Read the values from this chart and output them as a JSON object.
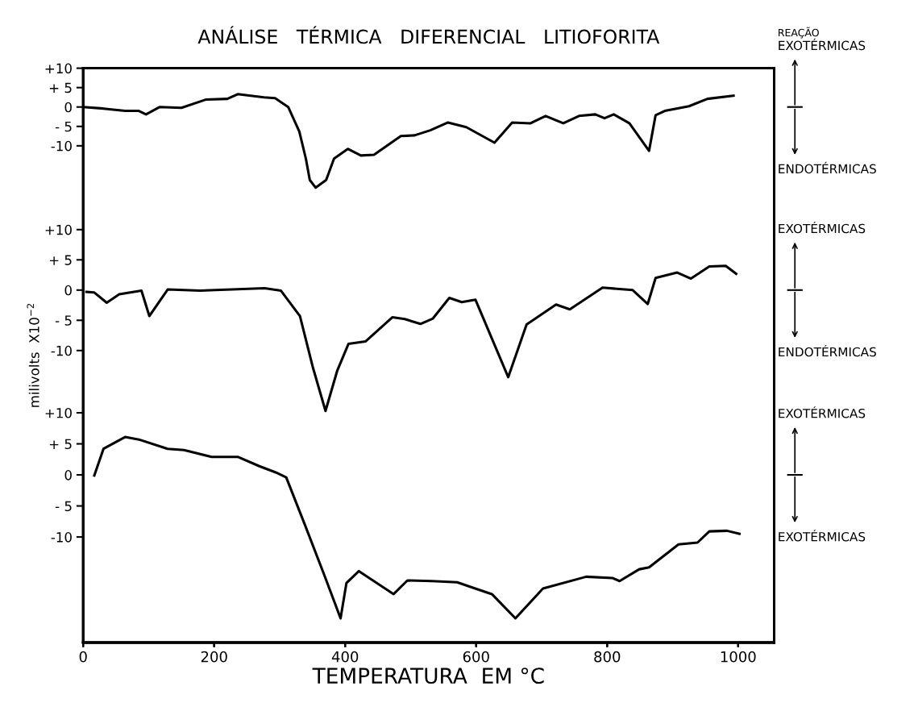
{
  "chart_data": [
    {
      "type": "line",
      "title": "ANÁLISE   TÉRMICA   DIFERENCIAL   LITIOFORITA",
      "annotations": [
        "REAÇÃO",
        "EXOTÉRMICAS",
        "ENDOTÉRMICAS"
      ],
      "tick_labels": "y",
      "xlim": [
        0,
        1055
      ],
      "xticks": [
        0,
        200,
        400,
        600,
        800,
        1000
      ],
      "ylim": [
        -138,
        10
      ],
      "yticks": [
        {
          "value": 10,
          "label": "+10"
        },
        {
          "value": 5,
          "label": "+ 5"
        },
        0,
        {
          "value": -5,
          "label": "- 5"
        },
        {
          "value": -10,
          "label": "-10"
        }
      ],
      "x": [
        0,
        31,
        64,
        85,
        96,
        117,
        150,
        187,
        220,
        236,
        276,
        293,
        313,
        330,
        340,
        346,
        355,
        371,
        383,
        404,
        424,
        444,
        485,
        506,
        530,
        557,
        585,
        628,
        655,
        683,
        706,
        733,
        757,
        782,
        796,
        810,
        834,
        864,
        874,
        888,
        925,
        953,
        993
      ],
      "series": [
        {
          "color": "#000000",
          "values": [
            0,
            -0.4,
            -1,
            -1,
            -1.9,
            0,
            -0.2,
            1.9,
            2.1,
            3.3,
            2.5,
            2.3,
            0,
            -6.3,
            -13.3,
            -18.8,
            -20.8,
            -18.8,
            -13.3,
            -10.8,
            -12.5,
            -12.3,
            -7.5,
            -7.3,
            -6,
            -4,
            -5.2,
            -9.2,
            -4,
            -4.2,
            -2.3,
            -4.2,
            -2.3,
            -1.9,
            -2.9,
            -1.9,
            -4.2,
            -11.3,
            -2.1,
            -1,
            0.2,
            2.1,
            2.9
          ]
        }
      ]
    },
    {
      "type": "line",
      "ylabel": "milivolts  X10$^{−2}$",
      "annotations": [
        "EXOTÉRMICAS",
        "ENDOTÉRMICAS"
      ],
      "tick_labels": "y",
      "xlim": [
        0,
        1055
      ],
      "xticks": [
        0,
        200,
        400,
        600,
        800,
        1000
      ],
      "ylim": [
        -58.3,
        36.7
      ],
      "yticks": [
        {
          "value": 10,
          "label": "+10"
        },
        {
          "value": 5,
          "label": "+ 5"
        },
        0,
        {
          "value": -5,
          "label": "- 5"
        },
        {
          "value": -10,
          "label": "-10"
        }
      ],
      "x": [
        5,
        17,
        36,
        55,
        89,
        101,
        129,
        178,
        277,
        302,
        331,
        351,
        370,
        388,
        405,
        431,
        472,
        491,
        515,
        534,
        559,
        578,
        599,
        649,
        677,
        722,
        743,
        793,
        839,
        862,
        874,
        907,
        928,
        956,
        981,
        997
      ],
      "series": [
        {
          "color": "#000000",
          "values": [
            -0.3,
            -0.4,
            -2.1,
            -0.7,
            -0.1,
            -4.3,
            0.1,
            -0.1,
            0.3,
            -0.1,
            -4.3,
            -12.9,
            -20,
            -13.3,
            -8.9,
            -8.5,
            -4.5,
            -4.8,
            -5.6,
            -4.7,
            -1.3,
            -2,
            -1.6,
            -14.4,
            -5.7,
            -2.4,
            -3.2,
            0.4,
            0,
            -2.3,
            2,
            2.9,
            1.9,
            3.9,
            4,
            2.7
          ]
        }
      ]
    },
    {
      "type": "line",
      "xlabel": "TEMPERATURA  EM °C",
      "annotations": [
        "EXOTÉRMICAS",
        "EXOTÉRMICAS"
      ],
      "xlim": [
        0,
        1055
      ],
      "xticks": [
        0,
        200,
        400,
        600,
        800,
        1000
      ],
      "ylim": [
        -27,
        65.5
      ],
      "yticks": [
        {
          "value": 10,
          "label": "+10"
        },
        {
          "value": 5,
          "label": "+ 5"
        },
        0,
        {
          "value": -5,
          "label": "- 5"
        },
        {
          "value": -10,
          "label": "-10"
        }
      ],
      "x": [
        17,
        31,
        64,
        85,
        129,
        154,
        196,
        236,
        269,
        294,
        310,
        338,
        368,
        393,
        402,
        421,
        474,
        495,
        532,
        571,
        596,
        624,
        660,
        702,
        768,
        808,
        819,
        849,
        864,
        909,
        938,
        956,
        983,
        1002
      ],
      "series": [
        {
          "color": "#000000",
          "values": [
            -0.1,
            4.2,
            6.1,
            5.7,
            4.2,
            4,
            2.9,
            2.9,
            1.4,
            0.4,
            -0.4,
            -7.9,
            -16.1,
            -23.1,
            -17.4,
            -15.5,
            -19.2,
            -17,
            -17.1,
            -17.3,
            -18.2,
            -19.2,
            -23.1,
            -18.3,
            -16.4,
            -16.6,
            -17.1,
            -15.2,
            -14.9,
            -11.2,
            -10.9,
            -9.1,
            -9,
            -9.5
          ]
        }
      ]
    }
  ]
}
